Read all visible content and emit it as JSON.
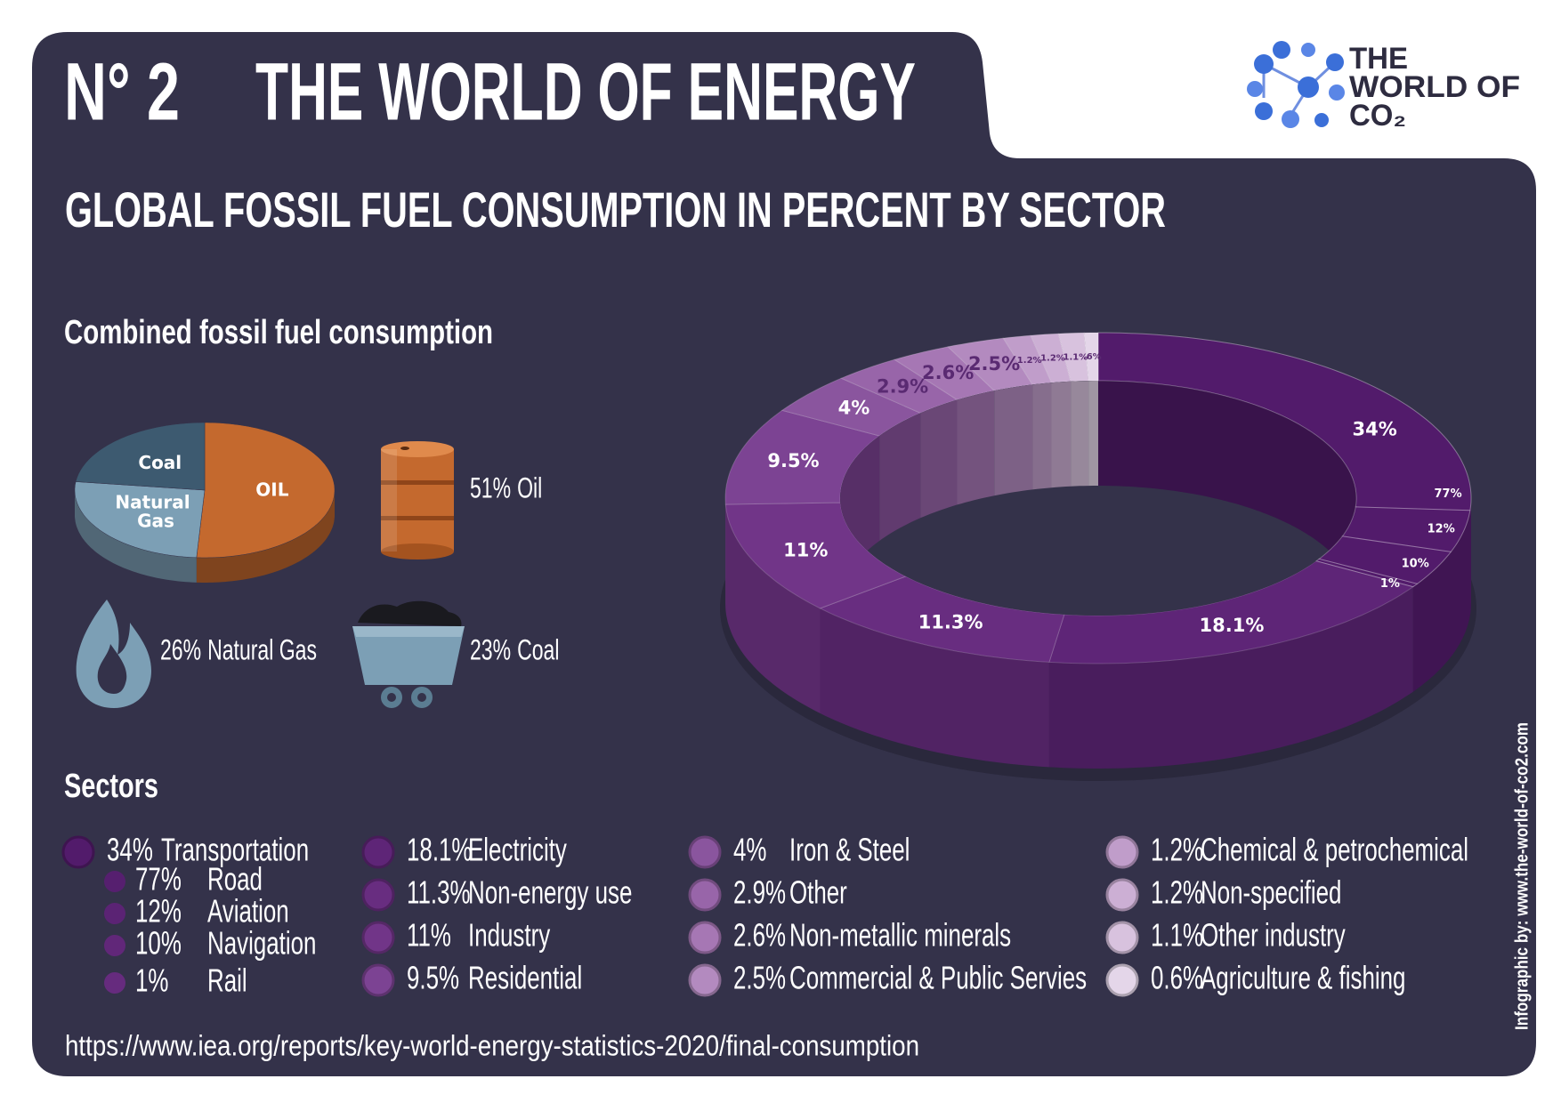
{
  "header": {
    "number": "N° 2",
    "title": "THE WORLD OF ENERGY",
    "logo": [
      "THE",
      "WORLD OF",
      "CO₂"
    ]
  },
  "subtitle": "GLOBAL FOSSIL FUEL CONSUMPTION IN PERCENT BY SECTOR",
  "chart_data": [
    {
      "type": "pie",
      "title": "Combined fossil fuel consumption",
      "categories": [
        "OIL",
        "Natural Gas",
        "Coal"
      ],
      "legend": [
        "Oil",
        "Natural Gas",
        "Coal"
      ],
      "values": [
        51,
        26,
        23
      ],
      "value_labels": [
        "51%",
        "26%",
        "23%"
      ],
      "colors": [
        "#c4692e",
        "#7c9fb5",
        "#3d5a70"
      ]
    },
    {
      "type": "donut",
      "title": "Sectors",
      "categories": [
        "Transportation",
        "Electricity",
        "Non-energy use",
        "Industry",
        "Residential",
        "Iron & Steel",
        "Other",
        "Non-metallic minerals",
        "Commercial & Public Servies",
        "Chemical & petrochemical",
        "Non-specified",
        "Other industry",
        "Agriculture & fishing"
      ],
      "values": [
        34,
        18.1,
        11.3,
        11,
        9.5,
        4,
        2.9,
        2.6,
        2.5,
        1.2,
        1.2,
        1.1,
        0.6
      ],
      "value_labels": [
        "34%",
        "18.1%",
        "11.3%",
        "11%",
        "9.5%",
        "4%",
        "2.9%",
        "2.6%",
        "2.5%",
        "1.2%",
        "1.2%",
        "1.1%",
        "0.6%"
      ],
      "ring_labels": [
        "34%",
        "18.1%",
        "11.3%",
        "11%",
        "9.5%",
        "4%",
        "2.9%",
        "2.6%",
        "2.5%",
        "1.2%",
        "1.2%",
        "1.1%",
        ".6%"
      ],
      "colors": [
        "#521b6b",
        "#5e2577",
        "#682d80",
        "#713588",
        "#7c4393",
        "#8a559e",
        "#9865a9",
        "#a677b4",
        "#b38abf",
        "#c09dca",
        "#ccafd4",
        "#d8c2de",
        "#e4d6e9"
      ],
      "transportation_breakdown": {
        "categories": [
          "Road",
          "Aviation",
          "Navigation",
          "Rail"
        ],
        "values": [
          77,
          12,
          10,
          1
        ],
        "value_labels": [
          "77%",
          "12%",
          "10%",
          "1%"
        ],
        "colors": [
          "#561f6f",
          "#5b2374",
          "#612779",
          "#662b7e"
        ]
      }
    }
  ],
  "source": "https://www.iea.org/reports/key-world-energy-statistics-2020/final-consumption",
  "credit": "Infographic by: www.the-world-of-co2.com"
}
